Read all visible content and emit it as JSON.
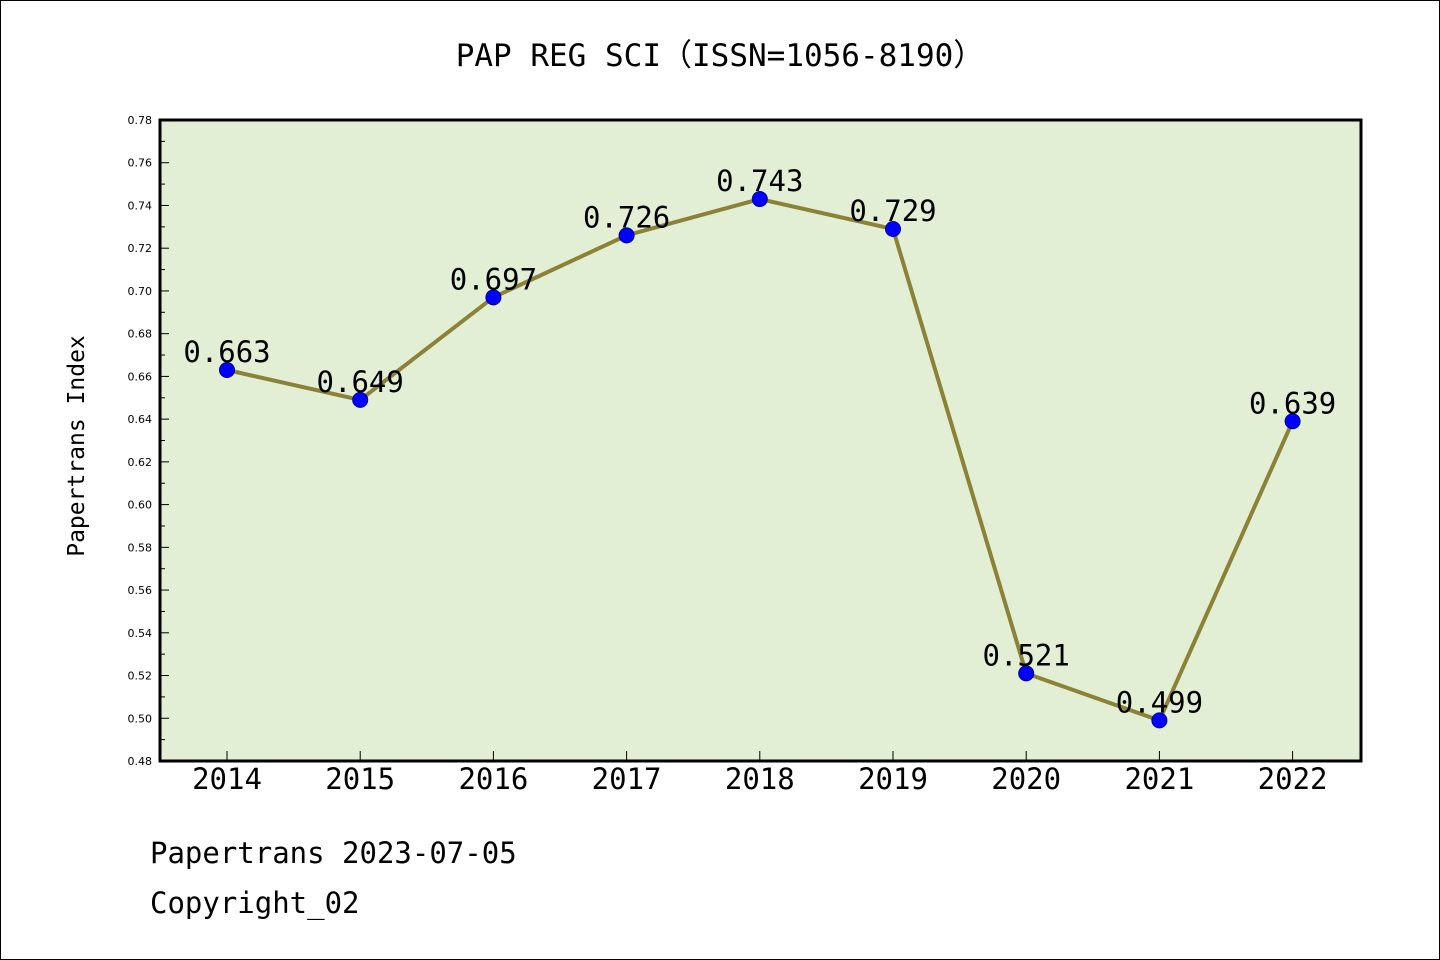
{
  "colors": {
    "plot_background": "#e2efd4",
    "line": "#8b8237",
    "marker_fill": "#0000ff",
    "marker_edge": "#00008b",
    "axis": "#000000"
  },
  "footer": {
    "source": "Papertrans 2023-07-05",
    "copyright": "Copyright_02"
  },
  "chart_data": {
    "type": "line",
    "title": "PAP REG SCI（ISSN=1056-8190）",
    "xlabel": "",
    "ylabel": "Papertrans Index",
    "categories": [
      "2014",
      "2015",
      "2016",
      "2017",
      "2018",
      "2019",
      "2020",
      "2021",
      "2022"
    ],
    "values": [
      0.663,
      0.649,
      0.697,
      0.726,
      0.743,
      0.729,
      0.521,
      0.499,
      0.639
    ],
    "data_labels": [
      "0.663",
      "0.649",
      "0.697",
      "0.726",
      "0.743",
      "0.729",
      "0.521",
      "0.499",
      "0.639"
    ],
    "ylim": [
      0.48,
      0.78
    ],
    "yticks": [
      "0.48",
      "0.50",
      "0.52",
      "0.54",
      "0.56",
      "0.58",
      "0.60",
      "0.62",
      "0.64",
      "0.66",
      "0.68",
      "0.70",
      "0.72",
      "0.74",
      "0.76",
      "0.78"
    ],
    "grid": false,
    "legend": "none"
  }
}
